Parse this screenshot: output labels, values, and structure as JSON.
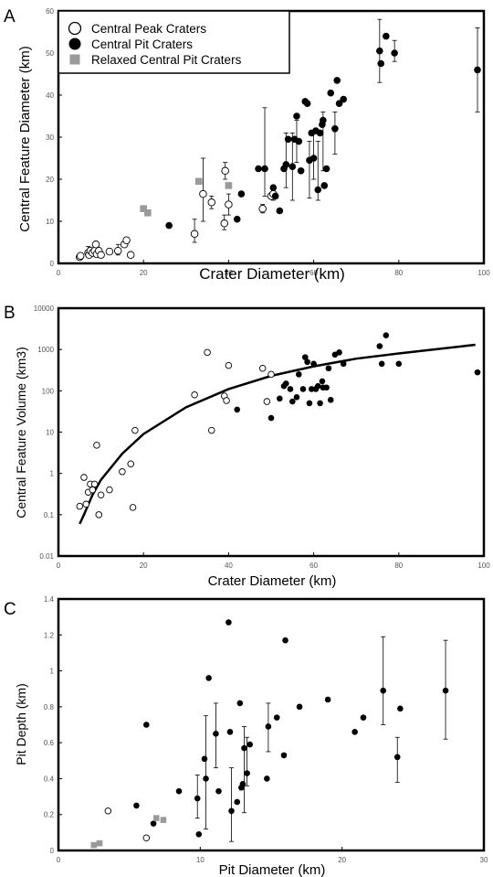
{
  "chart_data": [
    {
      "panel": "A",
      "type": "scatter",
      "xlabel": "Crater Diameter (km)",
      "ylabel": "Central Feature Diameter (km)",
      "xlim": [
        0,
        100
      ],
      "ylim": [
        0,
        60
      ],
      "xticks": [
        "0",
        "20",
        "40",
        "60",
        "80",
        "100"
      ],
      "yticks": [
        "0",
        "10",
        "20",
        "30",
        "40",
        "50",
        "60"
      ],
      "grid": false,
      "legend_position": "top-left",
      "series": [
        {
          "name": "Central Peak Craters",
          "marker": "open-circle",
          "points": [
            [
              5,
              1.5
            ],
            [
              5.2,
              1.8
            ],
            [
              7,
              2.5
            ],
            [
              7.2,
              2.0
            ],
            [
              7.5,
              3.0
            ],
            [
              8,
              2.5
            ],
            [
              8.5,
              3.0
            ],
            [
              8.8,
              4.5
            ],
            [
              9,
              2.2
            ],
            [
              9.5,
              3.0
            ],
            [
              10,
              2.0
            ],
            [
              12,
              2.8
            ],
            [
              14,
              3.0
            ],
            [
              15.5,
              4.5
            ],
            [
              16,
              5.5
            ],
            [
              17,
              2.0
            ],
            [
              32,
              7.0
            ],
            [
              34,
              16.5
            ],
            [
              36,
              14.5
            ],
            [
              39,
              9.5
            ],
            [
              39.2,
              22.0
            ],
            [
              40,
              14.0
            ],
            [
              48,
              13.0
            ],
            [
              50,
              16.0
            ],
            [
              50.5,
              16.5
            ]
          ],
          "error": [
            [
              7,
              4,
              1.5
            ],
            [
              14,
              4.5,
              2.0
            ],
            [
              32,
              10.5,
              5.0
            ],
            [
              34,
              25,
              10.0
            ],
            [
              36,
              16,
              13.0
            ],
            [
              39,
              11.5,
              8.0
            ],
            [
              39.2,
              24,
              20.0
            ],
            [
              40,
              16.5,
              11.5
            ],
            [
              48,
              14,
              12.0
            ],
            [
              50.5,
              17,
              15.0
            ]
          ]
        },
        {
          "name": "Central Pit Craters",
          "marker": "filled-circle",
          "points": [
            [
              26,
              9.0
            ],
            [
              42,
              10.5
            ],
            [
              43,
              16.5
            ],
            [
              47,
              22.5
            ],
            [
              48.5,
              22.5
            ],
            [
              50.5,
              18.0
            ],
            [
              51,
              16.0
            ],
            [
              52,
              12.5
            ],
            [
              53,
              22.5
            ],
            [
              53.5,
              23.5
            ],
            [
              54,
              29.5
            ],
            [
              55,
              23.0
            ],
            [
              55.5,
              29.5
            ],
            [
              56,
              35.0
            ],
            [
              56.5,
              29.0
            ],
            [
              57,
              22.0
            ],
            [
              58,
              38.5
            ],
            [
              58.5,
              38.0
            ],
            [
              59,
              24.5
            ],
            [
              59.5,
              31.0
            ],
            [
              60,
              25.0
            ],
            [
              60.5,
              31.5
            ],
            [
              61,
              17.5
            ],
            [
              61.5,
              31.0
            ],
            [
              62,
              33.0
            ],
            [
              62.2,
              34.0
            ],
            [
              62.5,
              18.5
            ],
            [
              63,
              22.5
            ],
            [
              64,
              40.5
            ],
            [
              65,
              32.0
            ],
            [
              65.5,
              43.5
            ],
            [
              66,
              38.0
            ],
            [
              67,
              39.0
            ],
            [
              75.5,
              50.5
            ],
            [
              75.8,
              47.5
            ],
            [
              77,
              54.0
            ],
            [
              79,
              50.0
            ],
            [
              98.5,
              46.0
            ]
          ],
          "error": [
            [
              48.5,
              37,
              16.0
            ],
            [
              53.5,
              31,
              18.0
            ],
            [
              55,
              31,
              15.0
            ],
            [
              56,
              34,
              24.0
            ],
            [
              59,
              29,
              15.5
            ],
            [
              60,
              31,
              20.0
            ],
            [
              61,
              29,
              15.0
            ],
            [
              62.2,
              36,
              22.0
            ],
            [
              65,
              36,
              26.0
            ],
            [
              75.5,
              58,
              43.0
            ],
            [
              79,
              53,
              48.0
            ],
            [
              98.5,
              56,
              36.0
            ]
          ]
        },
        {
          "name": "Relaxed Central Pit Craters",
          "marker": "gray-square",
          "points": [
            [
              20,
              13.0
            ],
            [
              21,
              12.0
            ],
            [
              33,
              19.5
            ],
            [
              40,
              18.5
            ]
          ]
        }
      ]
    },
    {
      "panel": "B",
      "type": "scatter",
      "xlabel": "Crater Diameter (km)",
      "ylabel": "Central Feature Volume (km3)",
      "xlim": [
        0,
        100
      ],
      "ylim": [
        0.01,
        10000
      ],
      "yscale": "log",
      "xticks": [
        "0",
        "20",
        "40",
        "60",
        "80",
        "100"
      ],
      "yticks": [
        "0.01",
        "0.1",
        "1",
        "10",
        "100",
        "1000",
        "10000"
      ],
      "grid": false,
      "series": [
        {
          "name": "",
          "marker": "open-circle",
          "points": [
            [
              5,
              0.16
            ],
            [
              6,
              0.8
            ],
            [
              6.5,
              0.18
            ],
            [
              7,
              0.35
            ],
            [
              7.5,
              0.55
            ],
            [
              8,
              0.4
            ],
            [
              8.5,
              0.55
            ],
            [
              9,
              4.8
            ],
            [
              9.5,
              0.1
            ],
            [
              10,
              0.3
            ],
            [
              12,
              0.4
            ],
            [
              15,
              1.1
            ],
            [
              17,
              1.7
            ],
            [
              17.5,
              0.15
            ],
            [
              18,
              11
            ],
            [
              32,
              80
            ],
            [
              35,
              850
            ],
            [
              36,
              11
            ],
            [
              39,
              75
            ],
            [
              39.5,
              58
            ],
            [
              40,
              410
            ],
            [
              48,
              350
            ],
            [
              49,
              55
            ],
            [
              50,
              250
            ]
          ]
        },
        {
          "name": "",
          "marker": "filled-circle",
          "points": [
            [
              42,
              35
            ],
            [
              50,
              22
            ],
            [
              52,
              65
            ],
            [
              53,
              130
            ],
            [
              53.5,
              150
            ],
            [
              54.5,
              110
            ],
            [
              55,
              55
            ],
            [
              56,
              70
            ],
            [
              56.5,
              250
            ],
            [
              57.5,
              110
            ],
            [
              58,
              650
            ],
            [
              58.5,
              500
            ],
            [
              59,
              50
            ],
            [
              59.5,
              110
            ],
            [
              60,
              450
            ],
            [
              60.5,
              110
            ],
            [
              61,
              130
            ],
            [
              61.5,
              50
            ],
            [
              62,
              170
            ],
            [
              62.2,
              120
            ],
            [
              63,
              120
            ],
            [
              63.5,
              350
            ],
            [
              64,
              60
            ],
            [
              65,
              750
            ],
            [
              66,
              850
            ],
            [
              67,
              450
            ],
            [
              75.5,
              1200
            ],
            [
              76,
              450
            ],
            [
              77,
              2200
            ],
            [
              80,
              450
            ],
            [
              98.5,
              280
            ]
          ]
        },
        {
          "name": "",
          "marker": "fit-line",
          "points": [
            [
              5,
              0.06
            ],
            [
              6,
              0.1
            ],
            [
              8,
              0.3
            ],
            [
              10,
              0.7
            ],
            [
              15,
              3
            ],
            [
              20,
              9
            ],
            [
              30,
              40
            ],
            [
              40,
              110
            ],
            [
              50,
              230
            ],
            [
              60,
              390
            ],
            [
              70,
              600
            ],
            [
              80,
              800
            ],
            [
              90,
              1050
            ],
            [
              98,
              1300
            ]
          ]
        }
      ]
    },
    {
      "panel": "C",
      "type": "scatter",
      "xlabel": "Pit Diameter (km)",
      "ylabel": "Pit Depth (km)",
      "xlim": [
        0,
        30
      ],
      "ylim": [
        0,
        1.4
      ],
      "xticks": [
        "0",
        "10",
        "20",
        "30"
      ],
      "yticks": [
        "0",
        "0.2",
        "0.4",
        "0.6",
        "0.8",
        "1",
        "1.2",
        "1.4"
      ],
      "grid": false,
      "series": [
        {
          "name": "",
          "marker": "open-circle",
          "points": [
            [
              3.5,
              0.22
            ],
            [
              6.2,
              0.07
            ]
          ]
        },
        {
          "name": "",
          "marker": "filled-circle",
          "points": [
            [
              5.5,
              0.25
            ],
            [
              6.2,
              0.7
            ],
            [
              6.7,
              0.15
            ],
            [
              8.5,
              0.33
            ],
            [
              9.8,
              0.29
            ],
            [
              9.9,
              0.09
            ],
            [
              10.3,
              0.51
            ],
            [
              10.4,
              0.4
            ],
            [
              10.6,
              0.96
            ],
            [
              11.1,
              0.65
            ],
            [
              11.3,
              0.33
            ],
            [
              12.0,
              1.27
            ],
            [
              12.1,
              0.66
            ],
            [
              12.2,
              0.22
            ],
            [
              12.6,
              0.27
            ],
            [
              12.8,
              0.82
            ],
            [
              12.9,
              0.35
            ],
            [
              13.0,
              0.37
            ],
            [
              13.1,
              0.57
            ],
            [
              13.3,
              0.43
            ],
            [
              13.5,
              0.59
            ],
            [
              14.7,
              0.4
            ],
            [
              14.8,
              0.69
            ],
            [
              15.4,
              0.74
            ],
            [
              15.9,
              0.53
            ],
            [
              16.0,
              1.17
            ],
            [
              17.0,
              0.8
            ],
            [
              19.0,
              0.84
            ],
            [
              20.9,
              0.66
            ],
            [
              21.5,
              0.74
            ],
            [
              22.9,
              0.89
            ],
            [
              23.9,
              0.52
            ],
            [
              24.1,
              0.79
            ],
            [
              27.3,
              0.89
            ]
          ],
          "error": [
            [
              9.8,
              0.42,
              0.18
            ],
            [
              10.4,
              0.75,
              0.12
            ],
            [
              11.1,
              0.82,
              0.46
            ],
            [
              12.2,
              0.46,
              0.05
            ],
            [
              13.1,
              0.69,
              0.21
            ],
            [
              13.3,
              0.63,
              0.36
            ],
            [
              14.8,
              0.82,
              0.55
            ],
            [
              22.9,
              1.19,
              0.7
            ],
            [
              23.9,
              0.63,
              0.38
            ],
            [
              27.3,
              1.17,
              0.62
            ]
          ]
        },
        {
          "name": "",
          "marker": "gray-square",
          "points": [
            [
              2.5,
              0.03
            ],
            [
              2.9,
              0.04
            ],
            [
              6.9,
              0.18
            ],
            [
              7.4,
              0.17
            ]
          ]
        }
      ]
    }
  ]
}
